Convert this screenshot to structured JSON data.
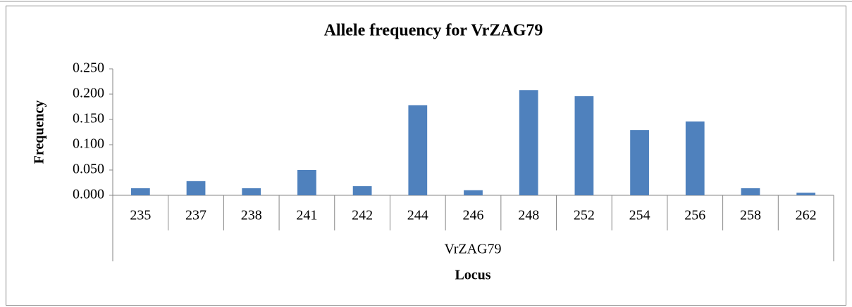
{
  "chart_data": {
    "type": "bar",
    "title": "Allele frequency for VrZAG79",
    "categories": [
      "235",
      "237",
      "238",
      "241",
      "242",
      "244",
      "246",
      "248",
      "252",
      "254",
      "256",
      "258",
      "262"
    ],
    "category_group": "VrZAG79",
    "values": [
      0.014,
      0.028,
      0.014,
      0.05,
      0.018,
      0.178,
      0.01,
      0.208,
      0.196,
      0.129,
      0.146,
      0.014,
      0.005
    ],
    "color": "#4f81bd",
    "xlabel": "Locus",
    "ylabel": "Frequency",
    "ylim": [
      0,
      0.25
    ],
    "yticks": [
      {
        "value": 0,
        "label": "0.000"
      },
      {
        "value": 0.05,
        "label": "0.050"
      },
      {
        "value": 0.1,
        "label": "0.100"
      },
      {
        "value": 0.15,
        "label": "0.150"
      },
      {
        "value": 0.2,
        "label": "0.200"
      },
      {
        "value": 0.25,
        "label": "0.250"
      }
    ],
    "grid": false
  }
}
